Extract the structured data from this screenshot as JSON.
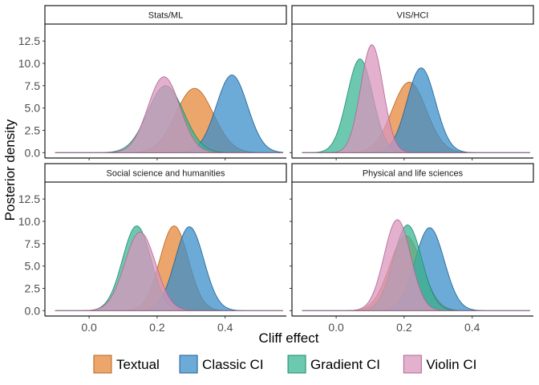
{
  "chart_data": {
    "type": "area",
    "xlabel": "Cliff effect",
    "ylabel": "Posterior density",
    "xlim": [
      -0.13,
      0.58
    ],
    "ylim": [
      -0.6,
      14.4
    ],
    "x_ticks": [
      "0.0",
      "0.2",
      "0.4"
    ],
    "x_tick_values": [
      0.0,
      0.2,
      0.4
    ],
    "y_ticks": [
      "0.0",
      "2.5",
      "5.0",
      "7.5",
      "10.0",
      "12.5"
    ],
    "y_tick_values": [
      0,
      2.5,
      5,
      7.5,
      10,
      12.5
    ],
    "grid": false,
    "legend_position": "bottom",
    "series_order": [
      "Textual",
      "Classic CI",
      "Gradient CI",
      "Violin CI"
    ],
    "colors": {
      "Textual": "#E6873A",
      "Classic CI": "#3B8FC9",
      "Gradient CI": "#3CB595",
      "Violin CI": "#D996BE"
    },
    "strokes": {
      "Textual": "#B5651D",
      "Classic CI": "#1F5F8F",
      "Gradient CI": "#1B8A6A",
      "Violin CI": "#B06590"
    },
    "panels": [
      {
        "title": "Stats/ML",
        "series": [
          {
            "name": "Textual",
            "peak_x": 0.31,
            "peak_density": 7.2
          },
          {
            "name": "Classic CI",
            "peak_x": 0.42,
            "peak_density": 8.7
          },
          {
            "name": "Gradient CI",
            "peak_x": 0.225,
            "peak_density": 7.5
          },
          {
            "name": "Violin CI",
            "peak_x": 0.22,
            "peak_density": 8.5
          }
        ]
      },
      {
        "title": "VIS/HCI",
        "series": [
          {
            "name": "Textual",
            "peak_x": 0.215,
            "peak_density": 7.9
          },
          {
            "name": "Classic CI",
            "peak_x": 0.25,
            "peak_density": 9.5
          },
          {
            "name": "Gradient CI",
            "peak_x": 0.07,
            "peak_density": 10.5
          },
          {
            "name": "Violin CI",
            "peak_x": 0.105,
            "peak_density": 12.1
          }
        ]
      },
      {
        "title": "Social science and humanities",
        "series": [
          {
            "name": "Textual",
            "peak_x": 0.25,
            "peak_density": 9.5
          },
          {
            "name": "Classic CI",
            "peak_x": 0.295,
            "peak_density": 9.4
          },
          {
            "name": "Gradient CI",
            "peak_x": 0.14,
            "peak_density": 9.5
          },
          {
            "name": "Violin CI",
            "peak_x": 0.15,
            "peak_density": 8.8
          }
        ]
      },
      {
        "title": "Physical and life sciences",
        "series": [
          {
            "name": "Textual",
            "peak_x": 0.205,
            "peak_density": 8.4
          },
          {
            "name": "Classic CI",
            "peak_x": 0.275,
            "peak_density": 9.3
          },
          {
            "name": "Gradient CI",
            "peak_x": 0.21,
            "peak_density": 9.6
          },
          {
            "name": "Violin CI",
            "peak_x": 0.18,
            "peak_density": 10.2
          }
        ]
      }
    ]
  }
}
